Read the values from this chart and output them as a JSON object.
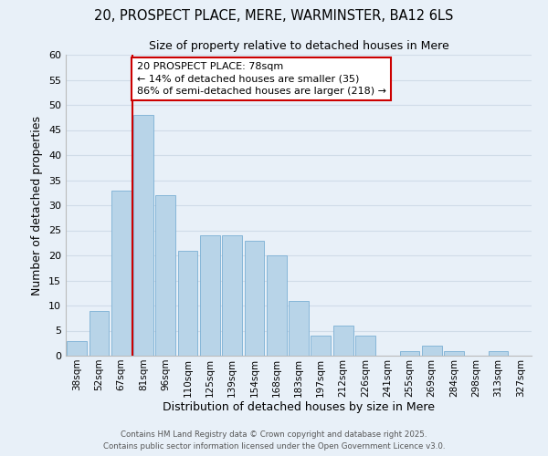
{
  "title_line1": "20, PROSPECT PLACE, MERE, WARMINSTER, BA12 6LS",
  "title_line2": "Size of property relative to detached houses in Mere",
  "xlabel": "Distribution of detached houses by size in Mere",
  "ylabel": "Number of detached properties",
  "bar_labels": [
    "38sqm",
    "52sqm",
    "67sqm",
    "81sqm",
    "96sqm",
    "110sqm",
    "125sqm",
    "139sqm",
    "154sqm",
    "168sqm",
    "183sqm",
    "197sqm",
    "212sqm",
    "226sqm",
    "241sqm",
    "255sqm",
    "269sqm",
    "284sqm",
    "298sqm",
    "313sqm",
    "327sqm"
  ],
  "bar_values": [
    3,
    9,
    33,
    48,
    32,
    21,
    24,
    24,
    23,
    20,
    11,
    4,
    6,
    4,
    0,
    1,
    2,
    1,
    0,
    1,
    0
  ],
  "bar_color": "#b8d4e8",
  "bar_edge_color": "#7bafd4",
  "vline_color": "#cc0000",
  "vline_pos": 3,
  "annotation_text": "20 PROSPECT PLACE: 78sqm\n← 14% of detached houses are smaller (35)\n86% of semi-detached houses are larger (218) →",
  "annotation_box_color": "#ffffff",
  "annotation_box_edge": "#cc0000",
  "ylim": [
    0,
    60
  ],
  "yticks": [
    0,
    5,
    10,
    15,
    20,
    25,
    30,
    35,
    40,
    45,
    50,
    55,
    60
  ],
  "grid_color": "#d0dce8",
  "background_color": "#e8f0f8",
  "footer_line1": "Contains HM Land Registry data © Crown copyright and database right 2025.",
  "footer_line2": "Contains public sector information licensed under the Open Government Licence v3.0."
}
